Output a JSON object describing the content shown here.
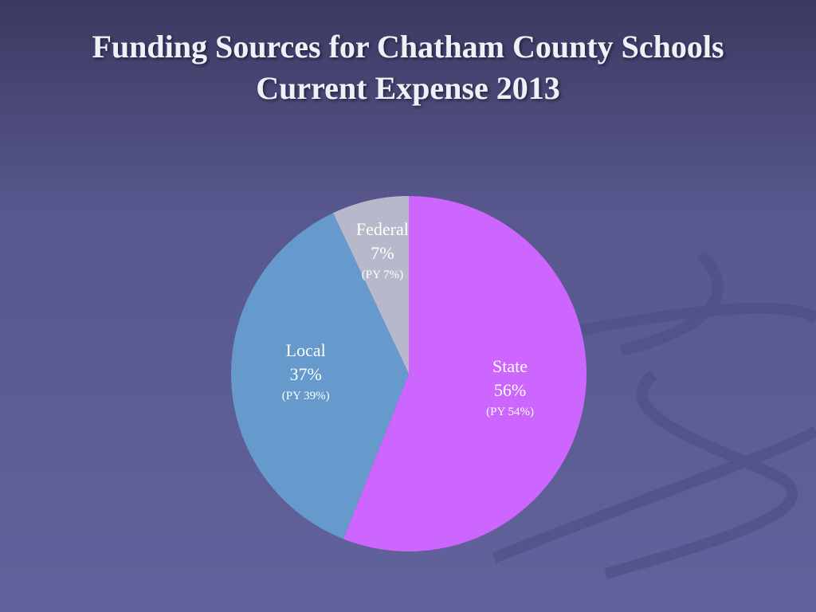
{
  "chart_data": {
    "type": "pie",
    "title": "Funding Sources for Chatham County Schools",
    "subtitle": "Current Expense 2013",
    "categories": [
      "State",
      "Local",
      "Federal"
    ],
    "values": [
      56,
      37,
      7
    ],
    "value_labels": [
      "56%",
      "37%",
      "7%"
    ],
    "prior_year_labels": [
      "(PY 54%)",
      "(PY 39%)",
      "(PY 7%)"
    ],
    "colors": [
      "#cc66ff",
      "#6699cc",
      "#b8b8cc"
    ]
  }
}
